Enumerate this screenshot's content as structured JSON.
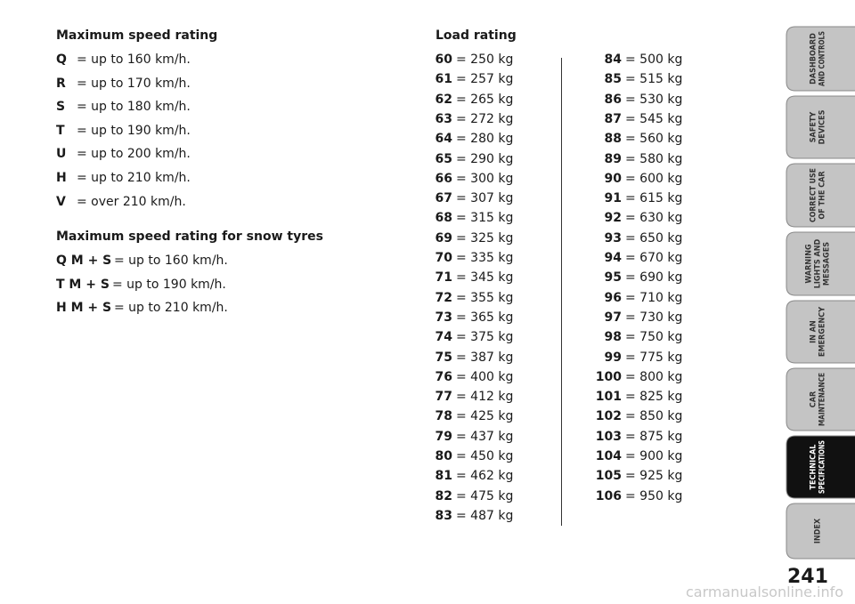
{
  "speed_rating": {
    "title": "Maximum speed rating",
    "rows": [
      {
        "code": "Q",
        "text": "= up to 160 km/h."
      },
      {
        "code": "R",
        "text": "= up to 170 km/h."
      },
      {
        "code": "S",
        "text": "= up to 180 km/h."
      },
      {
        "code": "T",
        "text": "= up to 190 km/h."
      },
      {
        "code": "U",
        "text": "= up to 200 km/h."
      },
      {
        "code": "H",
        "text": "= up to 210 km/h."
      },
      {
        "code": "V",
        "text": "= over 210 km/h."
      }
    ]
  },
  "snow_rating": {
    "title": "Maximum speed rating for snow tyres",
    "rows": [
      {
        "code": "Q M + S",
        "text": "= up to 160 km/h."
      },
      {
        "code": "T M + S",
        "text": "= up to 190 km/h."
      },
      {
        "code": "H M + S",
        "text": "= up to 210 km/h."
      }
    ]
  },
  "load_rating": {
    "title": "Load rating",
    "columns": [
      [
        {
          "code": "60",
          "text": "= 250 kg"
        },
        {
          "code": "61",
          "text": "= 257 kg"
        },
        {
          "code": "62",
          "text": "= 265 kg"
        },
        {
          "code": "63",
          "text": "= 272 kg"
        },
        {
          "code": "64",
          "text": "= 280 kg"
        },
        {
          "code": "65",
          "text": "= 290 kg"
        },
        {
          "code": "66",
          "text": "= 300 kg"
        },
        {
          "code": "67",
          "text": "= 307 kg"
        },
        {
          "code": "68",
          "text": "= 315 kg"
        },
        {
          "code": "69",
          "text": "= 325 kg"
        },
        {
          "code": "70",
          "text": "= 335 kg"
        },
        {
          "code": "71",
          "text": "= 345 kg"
        },
        {
          "code": "72",
          "text": "= 355 kg"
        },
        {
          "code": "73",
          "text": "= 365 kg"
        },
        {
          "code": "74",
          "text": "= 375 kg"
        },
        {
          "code": "75",
          "text": "= 387 kg"
        },
        {
          "code": "76",
          "text": "= 400 kg"
        },
        {
          "code": "77",
          "text": "= 412 kg"
        },
        {
          "code": "78",
          "text": "= 425 kg"
        },
        {
          "code": "79",
          "text": "= 437 kg"
        },
        {
          "code": "80",
          "text": "= 450 kg"
        },
        {
          "code": "81",
          "text": "= 462 kg"
        },
        {
          "code": "82",
          "text": "= 475 kg"
        },
        {
          "code": "83",
          "text": "= 487 kg"
        }
      ],
      [
        {
          "code": "84",
          "text": "= 500 kg"
        },
        {
          "code": "85",
          "text": "= 515 kg"
        },
        {
          "code": "86",
          "text": "= 530 kg"
        },
        {
          "code": "87",
          "text": "= 545 kg"
        },
        {
          "code": "88",
          "text": "= 560 kg"
        },
        {
          "code": "89",
          "text": "= 580 kg"
        },
        {
          "code": "90",
          "text": "= 600 kg"
        },
        {
          "code": "91",
          "text": "= 615 kg"
        },
        {
          "code": "92",
          "text": "= 630 kg"
        },
        {
          "code": "93",
          "text": "= 650 kg"
        },
        {
          "code": "94",
          "text": "= 670 kg"
        },
        {
          "code": "95",
          "text": "= 690 kg"
        },
        {
          "code": "96",
          "text": "= 710 kg"
        },
        {
          "code": "97",
          "text": "= 730 kg"
        },
        {
          "code": "98",
          "text": "= 750 kg"
        },
        {
          "code": "99",
          "text": "= 775 kg"
        },
        {
          "code": "100",
          "text": "= 800 kg"
        },
        {
          "code": "101",
          "text": "= 825 kg"
        },
        {
          "code": "102",
          "text": "= 850 kg"
        },
        {
          "code": "103",
          "text": "= 875 kg"
        },
        {
          "code": "104",
          "text": "= 900 kg"
        },
        {
          "code": "105",
          "text": "= 925 kg"
        },
        {
          "code": "106",
          "text": "= 950 kg"
        }
      ]
    ]
  },
  "tabs": [
    {
      "lines": [
        "DASHBOARD",
        "AND CONTROLS"
      ]
    },
    {
      "lines": [
        "SAFETY",
        "DEVICES"
      ]
    },
    {
      "lines": [
        "CORRECT USE",
        "OF THE CAR"
      ]
    },
    {
      "lines": [
        "WARNING",
        "LIGHTS AND",
        "MESSAGES"
      ]
    },
    {
      "lines": [
        "IN AN",
        "EMERGENCY"
      ]
    },
    {
      "lines": [
        "CAR",
        "MAINTENANCE"
      ]
    },
    {
      "lines": [
        "TECHNICAL",
        "SPECIFICATIONS"
      ],
      "active": true
    },
    {
      "lines": [
        "INDEX"
      ]
    }
  ],
  "page_number": "241",
  "watermark": "carmanualsonline.info"
}
